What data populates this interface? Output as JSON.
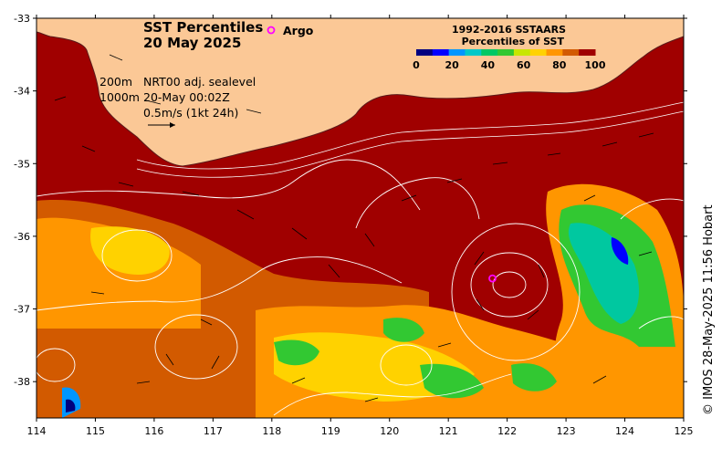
{
  "title": {
    "line1": "SST Percentiles",
    "line2": "20 May 2025"
  },
  "argo": {
    "label": "Argo",
    "color": "#ff00ff"
  },
  "legend": {
    "title1": "1992-2016 SSTAARS",
    "title2": "Percentiles of SST",
    "ticks": [
      "0",
      "20",
      "40",
      "60",
      "80",
      "100"
    ],
    "colors": [
      "#000080",
      "#0000ff",
      "#0096ff",
      "#00c8c8",
      "#00c864",
      "#32c832",
      "#c8e600",
      "#ffd200",
      "#ff9600",
      "#d25a00",
      "#a00000"
    ]
  },
  "info": {
    "depth1": "200m",
    "depth2": "1000m",
    "product": "NRT00 adj. sealevel",
    "time": "20-May 00:02Z",
    "scale": "0.5m/s (1kt 24h)"
  },
  "axes": {
    "lat_labels": [
      "-33",
      "-34",
      "-35",
      "-36",
      "-37",
      "-38"
    ],
    "lat_values": [
      -33,
      -34,
      -35,
      -36,
      -37,
      -38
    ],
    "lon_labels": [
      "114",
      "115",
      "116",
      "117",
      "118",
      "119",
      "120",
      "121",
      "122",
      "123",
      "124",
      "125"
    ],
    "lon_values": [
      114,
      115,
      116,
      117,
      118,
      119,
      120,
      121,
      122,
      123,
      124,
      125
    ],
    "lon_range": [
      114,
      125
    ],
    "lat_range": [
      -38.5,
      -33
    ]
  },
  "credit": "© IMOS 28-May-2025 11:56 Hobart",
  "colors": {
    "land": "#fbc896",
    "warm": "#a00000",
    "orange": "#d25a00",
    "amber": "#ff9600",
    "yellow": "#ffd200",
    "green": "#32c832",
    "teal": "#00c8a0"
  },
  "argo_float": {
    "lon": 121.75,
    "lat": -36.58
  }
}
